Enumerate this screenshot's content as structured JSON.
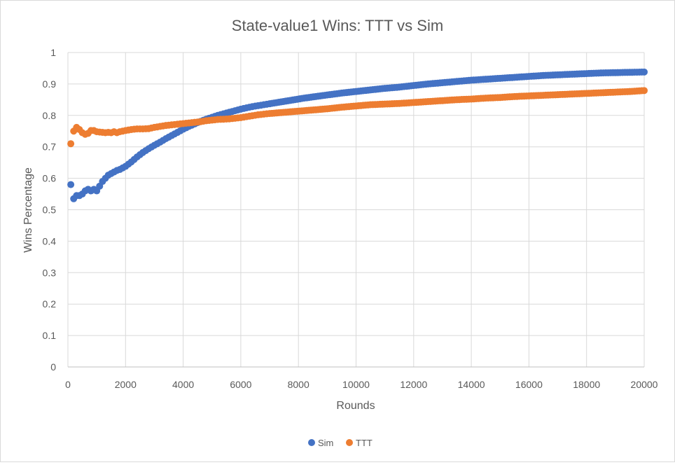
{
  "chart_data": {
    "type": "scatter",
    "title": "State-value1 Wins: TTT vs Sim",
    "xlabel": "Rounds",
    "ylabel": "Wins Percentage",
    "xlim": [
      0,
      20000
    ],
    "ylim": [
      0,
      1
    ],
    "xticks": [
      "0",
      "2000",
      "4000",
      "6000",
      "8000",
      "10000",
      "12000",
      "14000",
      "16000",
      "18000",
      "20000"
    ],
    "yticks": [
      "0",
      "0.1",
      "0.2",
      "0.3",
      "0.4",
      "0.5",
      "0.6",
      "0.7",
      "0.8",
      "0.9",
      "1"
    ],
    "grid": true,
    "legend_position": "bottom",
    "colors": {
      "Sim": "#4472C4",
      "TTT": "#ED7D31"
    },
    "series": [
      {
        "name": "Sim",
        "x": [
          100,
          200,
          300,
          400,
          500,
          600,
          700,
          800,
          900,
          1000,
          1100,
          1200,
          1300,
          1400,
          1500,
          1600,
          1700,
          1800,
          2000,
          2200,
          2400,
          2600,
          2800,
          3000,
          3200,
          3400,
          3600,
          3800,
          4000,
          4200,
          4400,
          4600,
          4800,
          5000,
          5200,
          5400,
          5600,
          5800,
          6000,
          6200,
          6400,
          6600,
          6800,
          7000,
          7400,
          7800,
          8200,
          8600,
          9000,
          9500,
          10000,
          10500,
          11000,
          11500,
          12000,
          12500,
          13000,
          13500,
          14000,
          14500,
          15000,
          15500,
          16000,
          16500,
          17000,
          17500,
          18000,
          18500,
          19000,
          19500,
          20000
        ],
        "y": [
          0.58,
          0.535,
          0.545,
          0.545,
          0.55,
          0.56,
          0.565,
          0.56,
          0.565,
          0.56,
          0.575,
          0.59,
          0.6,
          0.61,
          0.615,
          0.62,
          0.625,
          0.628,
          0.638,
          0.652,
          0.668,
          0.682,
          0.694,
          0.705,
          0.715,
          0.726,
          0.736,
          0.746,
          0.756,
          0.765,
          0.773,
          0.781,
          0.788,
          0.794,
          0.8,
          0.805,
          0.81,
          0.815,
          0.82,
          0.824,
          0.828,
          0.831,
          0.834,
          0.837,
          0.843,
          0.849,
          0.855,
          0.86,
          0.865,
          0.871,
          0.876,
          0.881,
          0.886,
          0.89,
          0.895,
          0.9,
          0.904,
          0.908,
          0.912,
          0.915,
          0.918,
          0.921,
          0.924,
          0.927,
          0.929,
          0.931,
          0.933,
          0.935,
          0.936,
          0.937,
          0.938
        ]
      },
      {
        "name": "TTT",
        "x": [
          100,
          200,
          300,
          400,
          500,
          600,
          700,
          800,
          900,
          1000,
          1100,
          1200,
          1300,
          1400,
          1500,
          1600,
          1700,
          1800,
          2000,
          2200,
          2400,
          2600,
          2800,
          3000,
          3200,
          3400,
          3600,
          3800,
          4000,
          4200,
          4400,
          4600,
          4800,
          5000,
          5200,
          5400,
          5600,
          5800,
          6000,
          6200,
          6400,
          6600,
          6800,
          7000,
          7400,
          7800,
          8200,
          8600,
          9000,
          9500,
          10000,
          10500,
          11000,
          11500,
          12000,
          12500,
          13000,
          13500,
          14000,
          14500,
          15000,
          15500,
          16000,
          16500,
          17000,
          17500,
          18000,
          18500,
          19000,
          19500,
          20000
        ],
        "y": [
          0.71,
          0.75,
          0.762,
          0.755,
          0.745,
          0.74,
          0.743,
          0.752,
          0.752,
          0.748,
          0.747,
          0.746,
          0.745,
          0.746,
          0.745,
          0.748,
          0.745,
          0.748,
          0.752,
          0.755,
          0.757,
          0.757,
          0.758,
          0.762,
          0.765,
          0.768,
          0.77,
          0.772,
          0.774,
          0.776,
          0.778,
          0.78,
          0.783,
          0.785,
          0.787,
          0.788,
          0.789,
          0.791,
          0.793,
          0.796,
          0.799,
          0.802,
          0.804,
          0.806,
          0.809,
          0.812,
          0.815,
          0.818,
          0.821,
          0.826,
          0.83,
          0.834,
          0.836,
          0.838,
          0.841,
          0.844,
          0.847,
          0.85,
          0.852,
          0.855,
          0.857,
          0.86,
          0.862,
          0.864,
          0.866,
          0.868,
          0.87,
          0.872,
          0.874,
          0.876,
          0.879
        ]
      }
    ]
  }
}
